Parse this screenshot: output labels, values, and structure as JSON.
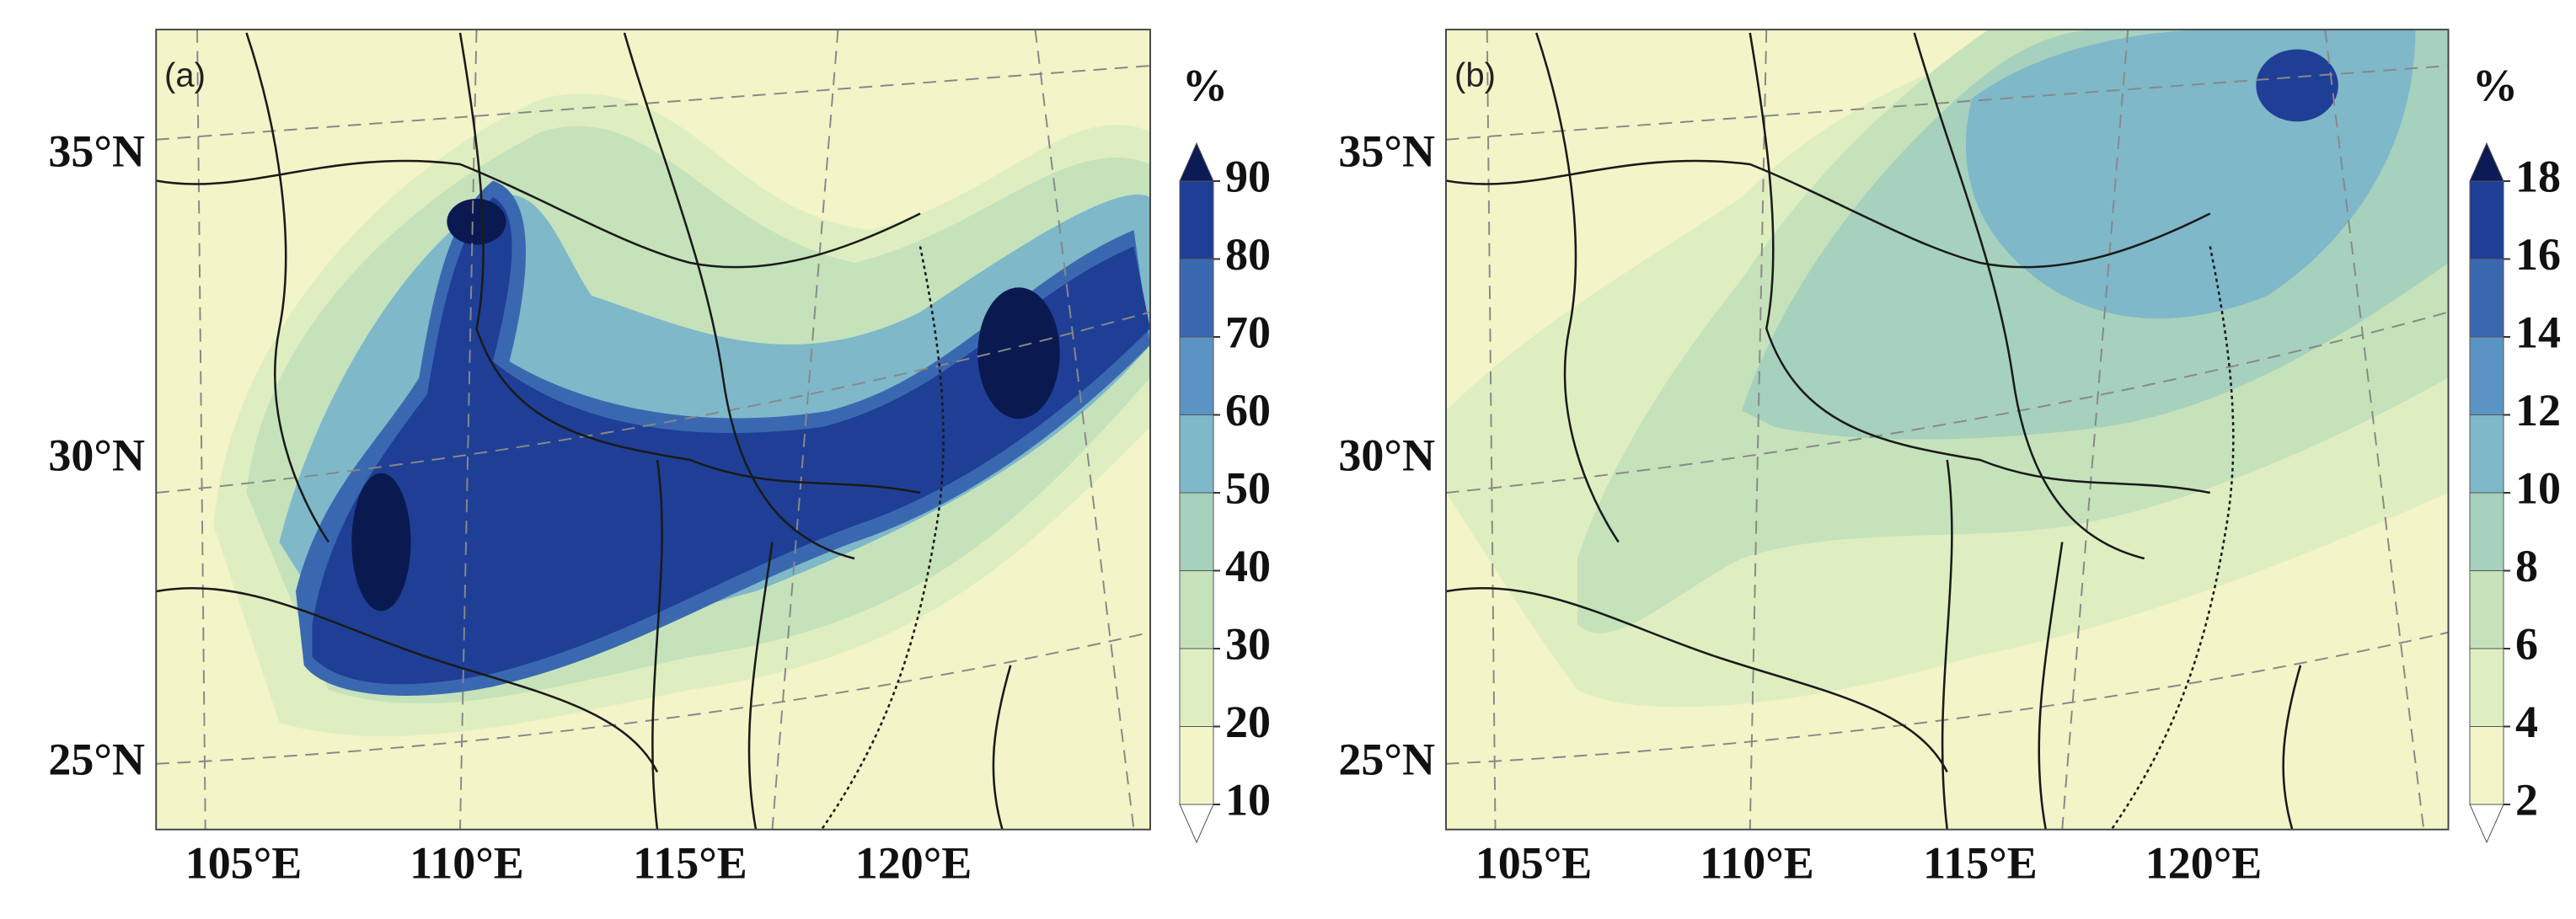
{
  "panels": [
    {
      "label": "(a)",
      "unit": "%",
      "lat_ticks": [
        {
          "value": 35,
          "label": "35°N"
        },
        {
          "value": 30,
          "label": "30°N"
        },
        {
          "value": 25,
          "label": "25°N"
        }
      ],
      "lon_ticks": [
        {
          "value": 105,
          "label": "105°E"
        },
        {
          "value": 110,
          "label": "110°E"
        },
        {
          "value": 115,
          "label": "115°E"
        },
        {
          "value": 120,
          "label": "120°E"
        }
      ],
      "colorbar": {
        "ticks": [
          10,
          20,
          30,
          40,
          50,
          60,
          70,
          80,
          90
        ],
        "colors": [
          "#ffffff",
          "#f2f5c8",
          "#dfeec0",
          "#c5e2bb",
          "#a6d1bd",
          "#7fb8c9",
          "#5a94c4",
          "#3a68b0",
          "#1f3f96",
          "#0c1a55"
        ]
      }
    },
    {
      "label": "(b)",
      "unit": "%",
      "lat_ticks": [
        {
          "value": 35,
          "label": "35°N"
        },
        {
          "value": 30,
          "label": "30°N"
        },
        {
          "value": 25,
          "label": "25°N"
        }
      ],
      "lon_ticks": [
        {
          "value": 105,
          "label": "105°E"
        },
        {
          "value": 110,
          "label": "110°E"
        },
        {
          "value": 115,
          "label": "115°E"
        },
        {
          "value": 120,
          "label": "120°E"
        }
      ],
      "colorbar": {
        "ticks": [
          2,
          4,
          6,
          8,
          10,
          12,
          14,
          16,
          18
        ],
        "colors": [
          "#ffffff",
          "#f2f5c8",
          "#dfeec0",
          "#c5e2bb",
          "#a6d1bd",
          "#7fb8c9",
          "#5a94c4",
          "#3a68b0",
          "#1f3f96",
          "#0c1a55"
        ]
      }
    }
  ]
}
